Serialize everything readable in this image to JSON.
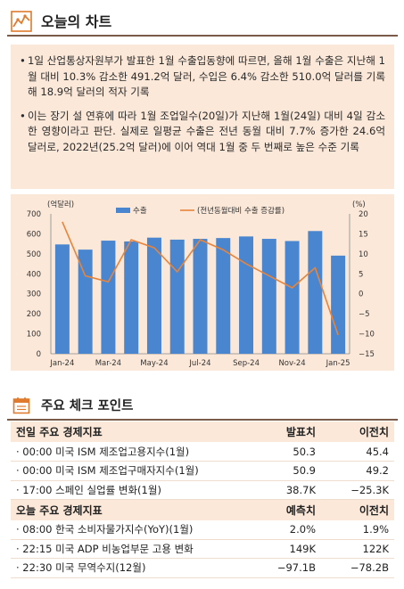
{
  "header": {
    "title": "오늘의 차트",
    "icon": "line-chart-icon"
  },
  "notes": [
    "1일 산업통상자원부가 발표한 1월 수출입동향에 따르면, 올해 1월 수출은 지난해 1월 대비 10.3% 감소한 491.2억 달러, 수입은 6.4% 감소한 510.0억 달러를 기록해 18.9억 달러의 적자 기록",
    "이는 장기 설 연휴에 따라 1월 조업일수(20일)가 지난해 1월(24일) 대비 4일 감소한 영향이라고 판단. 실제로 일평균 수출은 전년 동월 대비 7.7% 증가한 24.6억 달러로, 2022년(25.2억 달러)에 이어 역대 1월 중 두 번째로 높은 수준 기록"
  ],
  "bullet_char": "•",
  "chart_data": {
    "type": "bar+line",
    "left_unit": "(억달러)",
    "right_unit": "(%)",
    "categories": [
      "Jan-24",
      "Feb-24",
      "Mar-24",
      "Apr-24",
      "May-24",
      "Jun-24",
      "Jul-24",
      "Aug-24",
      "Sep-24",
      "Oct-24",
      "Nov-24",
      "Dec-24",
      "Jan-25"
    ],
    "x_tick_labels": [
      "Jan-24",
      "Mar-24",
      "May-24",
      "Jul-24",
      "Sep-24",
      "Nov-24",
      "Jan-25"
    ],
    "series": [
      {
        "name": "수출",
        "axis": "left",
        "kind": "bar",
        "values": [
          547,
          521,
          566,
          562,
          581,
          571,
          575,
          579,
          587,
          575,
          564,
          614,
          491
        ]
      },
      {
        "name": "(전년동월대비 수출 증감률)",
        "axis": "right",
        "kind": "line",
        "values": [
          18,
          4.5,
          3,
          13.5,
          11.5,
          5.5,
          13.5,
          11,
          7.5,
          4.5,
          1.5,
          6.5,
          -10.3
        ]
      }
    ],
    "ylim_left": [
      0,
      700
    ],
    "yticks_left": [
      "0",
      "100",
      "200",
      "300",
      "400",
      "500",
      "600",
      "700"
    ],
    "ylim_right": [
      -15,
      20
    ],
    "yticks_right": [
      "−15",
      "−10",
      "−5",
      "0",
      "5",
      "10",
      "15",
      "20"
    ],
    "colors": {
      "bar": "#4a86cf",
      "line": "#e8843a"
    },
    "grid": false,
    "legend": "top"
  },
  "section2": {
    "title": "주요 체크 포인트",
    "icon": "calendar-icon"
  },
  "table1": {
    "headers": [
      "전일 주요 경제지표",
      "발표치",
      "이전치"
    ],
    "rows": [
      [
        "· 00:00 미국 ISM 제조업고용지수(1월)",
        "50.3",
        "45.4"
      ],
      [
        "· 00:00 미국 ISM 제조업구매자지수(1월)",
        "50.9",
        "49.2"
      ],
      [
        "· 17:00 스페인 실업률 변화(1월)",
        "38.7K",
        "−25.3K"
      ]
    ]
  },
  "table2": {
    "headers": [
      "오늘 주요 경제지표",
      "예측치",
      "이전치"
    ],
    "rows": [
      [
        "· 08:00 한국 소비자물가지수(YoY)(1월)",
        "2.0%",
        "1.9%"
      ],
      [
        "· 22:15 미국 ADP 비농업부문 고용 변화",
        "149K",
        "122K"
      ],
      [
        "· 22:30 미국 무역수지(12월)",
        "−97.1B",
        "−78.2B"
      ]
    ]
  },
  "colors": {
    "accent_bg": "#fbe8d9",
    "rule": "#7a5a48",
    "icon": "#e07a2c"
  }
}
